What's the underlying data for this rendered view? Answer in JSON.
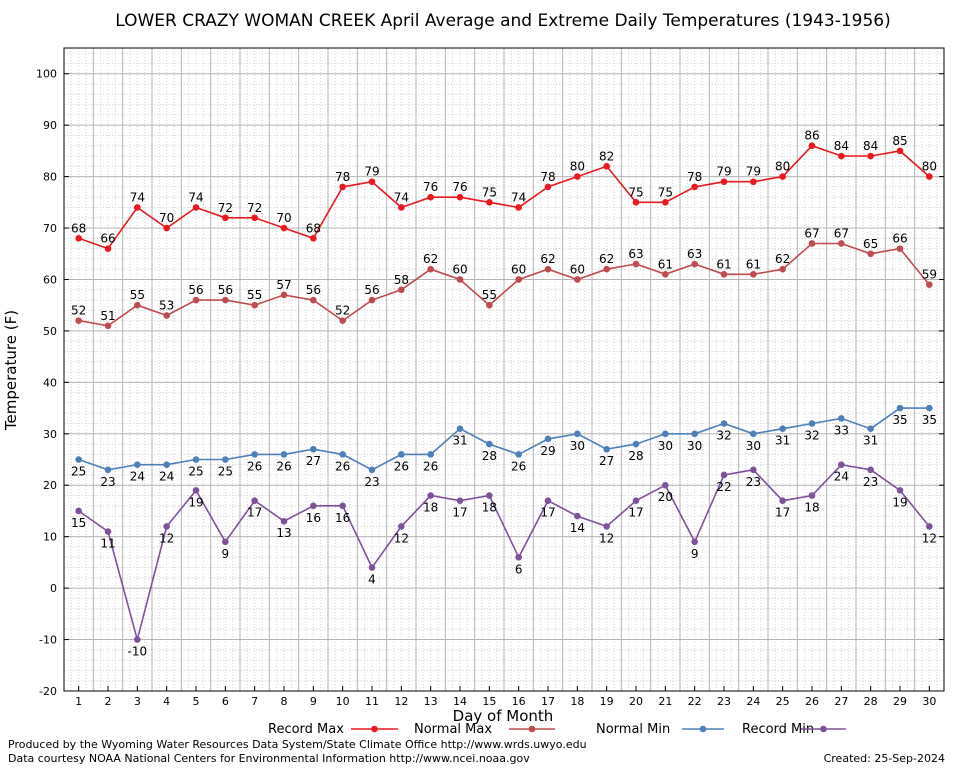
{
  "chart_data": {
    "type": "line",
    "title": "LOWER CRAZY WOMAN CREEK April Average and Extreme Daily Temperatures (1943-1956)",
    "xlabel": "Day of Month",
    "ylabel": "Temperature (F)",
    "x": [
      1,
      2,
      3,
      4,
      5,
      6,
      7,
      8,
      9,
      10,
      11,
      12,
      13,
      14,
      15,
      16,
      17,
      18,
      19,
      20,
      21,
      22,
      23,
      24,
      25,
      26,
      27,
      28,
      29,
      30
    ],
    "xlim": [
      0.5,
      30.5
    ],
    "ylim": [
      -20,
      105
    ],
    "yticks": [
      -20,
      -10,
      0,
      10,
      20,
      30,
      40,
      50,
      60,
      70,
      80,
      90,
      100
    ],
    "grid": true,
    "legend_placement": "bottom",
    "series": [
      {
        "name": "Record Max",
        "color": "#e8191f",
        "label_position": "above",
        "values": [
          68,
          66,
          74,
          70,
          74,
          72,
          72,
          70,
          68,
          78,
          79,
          74,
          76,
          76,
          75,
          74,
          78,
          80,
          82,
          75,
          75,
          78,
          79,
          79,
          80,
          86,
          84,
          84,
          85,
          80
        ]
      },
      {
        "name": "Normal Max",
        "color": "#bf4b4e",
        "label_position": "above",
        "values": [
          52,
          51,
          55,
          53,
          56,
          56,
          55,
          57,
          56,
          52,
          56,
          58,
          62,
          60,
          55,
          60,
          62,
          60,
          62,
          63,
          61,
          63,
          61,
          61,
          62,
          67,
          67,
          65,
          66,
          59
        ]
      },
      {
        "name": "Normal Min",
        "color": "#4b80b8",
        "label_position": "below",
        "values": [
          25,
          23,
          24,
          24,
          25,
          25,
          26,
          26,
          27,
          26,
          23,
          26,
          26,
          31,
          28,
          26,
          29,
          30,
          27,
          28,
          30,
          30,
          32,
          30,
          31,
          32,
          33,
          31,
          35,
          35
        ]
      },
      {
        "name": "Record Min",
        "color": "#7f519a",
        "label_position": "below",
        "values": [
          15,
          11,
          -10,
          12,
          19,
          9,
          17,
          13,
          16,
          16,
          4,
          12,
          18,
          17,
          18,
          6,
          17,
          14,
          12,
          17,
          20,
          9,
          22,
          23,
          17,
          18,
          24,
          23,
          19,
          12
        ]
      }
    ]
  },
  "footer": {
    "produced_by": "Produced by the Wyoming Water Resources Data System/State Climate Office http://www.wrds.uwyo.edu",
    "courtesy": "Data courtesy NOAA National Centers for Environmental Information http://www.ncei.noaa.gov",
    "created": "Created:  25-Sep-2024"
  },
  "colors": {
    "grid_major": "#b4b4b4",
    "grid_minor": "#d2d2d2",
    "axis": "#000000"
  }
}
